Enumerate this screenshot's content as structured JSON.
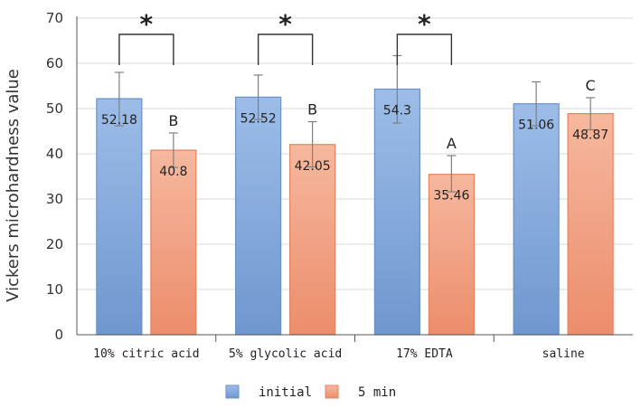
{
  "chart_data": {
    "type": "bar",
    "title": "",
    "xlabel": "",
    "ylabel": "Vickers microhardness value",
    "ylim": [
      0,
      70
    ],
    "yticks": [
      0,
      10,
      20,
      30,
      40,
      50,
      60,
      70
    ],
    "grid": true,
    "legend_position": "bottom",
    "categories": [
      "10% citric acid",
      "5% glycolic acid",
      "17% EDTA",
      "saline"
    ],
    "series": [
      {
        "name": "initial",
        "color": "#8fb1df",
        "values": [
          52.18,
          52.52,
          54.3,
          51.06
        ],
        "labels": [
          "52.18",
          "52.52",
          "54.3",
          "51.06"
        ],
        "err_low": [
          46.2,
          47.6,
          46.8,
          46.2
        ],
        "err_high": [
          58.0,
          57.4,
          61.7,
          55.9
        ]
      },
      {
        "name": "5 min",
        "color": "#f3a384",
        "values": [
          40.8,
          42.05,
          35.46,
          48.87
        ],
        "labels": [
          "40.8",
          "42.05",
          "35.46",
          "48.87"
        ],
        "err_low": [
          37.0,
          37.1,
          31.6,
          45.3
        ],
        "err_high": [
          44.6,
          47.1,
          39.6,
          52.4
        ]
      }
    ],
    "group_letters": [
      "B",
      "B",
      "A",
      "C"
    ],
    "significance": [
      {
        "category_index": 0,
        "symbol": "*"
      },
      {
        "category_index": 1,
        "symbol": "*"
      },
      {
        "category_index": 2,
        "symbol": "*"
      }
    ]
  }
}
